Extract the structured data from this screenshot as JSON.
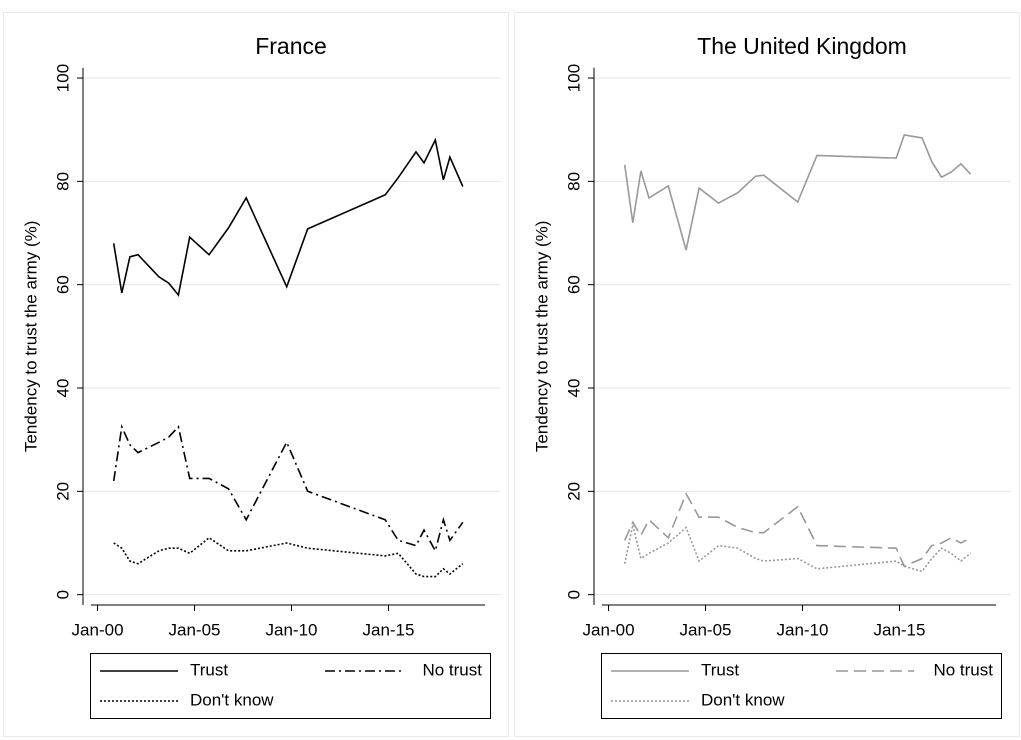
{
  "chart_data": [
    {
      "type": "line",
      "title": "France",
      "ylabel": "Tendency to trust the army (%)",
      "x": [
        "2000-11",
        "2001-04",
        "2001-09",
        "2002-02",
        "2003-03",
        "2003-09",
        "2004-03",
        "2004-10",
        "2005-10",
        "2006-10",
        "2007-09",
        "2009-10",
        "2010-11",
        "2014-11",
        "2015-07",
        "2016-06",
        "2016-11",
        "2017-06",
        "2017-11",
        "2018-03",
        "2018-11"
      ],
      "series": [
        {
          "name": "Trust",
          "color": "#000000",
          "dash": "solid",
          "values": [
            68,
            58.4,
            65.4,
            65.8,
            61.5,
            60.3,
            58,
            69.2,
            65.8,
            71,
            76.8,
            59.6,
            70.8,
            77.4,
            80.7,
            85.7,
            83.6,
            88,
            80.3,
            84.7,
            79
          ]
        },
        {
          "name": "No trust",
          "color": "#000000",
          "dash": "dashdot",
          "values": [
            22,
            32.5,
            29,
            27.5,
            29.5,
            30.5,
            32.5,
            22.5,
            22.5,
            20.5,
            14.5,
            29.5,
            20,
            14.5,
            10.5,
            9.5,
            12.5,
            8.5,
            14.5,
            10.5,
            14
          ]
        },
        {
          "name": "Don't know",
          "color": "#000000",
          "dash": "dotted",
          "values": [
            10,
            9,
            6.5,
            6,
            8.5,
            9,
            9,
            8,
            11,
            8.5,
            8.5,
            10,
            9,
            7.5,
            8,
            4,
            3.5,
            3.5,
            5,
            4,
            6
          ]
        }
      ],
      "xlim": [
        "1999-04",
        "2020-10"
      ],
      "xticks": [
        {
          "value": "2000-01",
          "label": "Jan-00"
        },
        {
          "value": "2005-01",
          "label": "Jan-05"
        },
        {
          "value": "2010-01",
          "label": "Jan-10"
        },
        {
          "value": "2015-01",
          "label": "Jan-15"
        }
      ],
      "ylim": [
        -2,
        102
      ],
      "yticks": [
        0,
        20,
        40,
        60,
        80,
        100
      ],
      "grid": true,
      "legend": "bottom"
    },
    {
      "type": "line",
      "title": "The United Kingdom",
      "ylabel": "Tendency to trust the army (%)",
      "x": [
        "2000-11",
        "2001-04",
        "2001-09",
        "2002-02",
        "2003-02",
        "2004-01",
        "2004-09",
        "2005-09",
        "2006-09",
        "2007-08",
        "2008-01",
        "2009-10",
        "2010-10",
        "2014-11",
        "2015-04",
        "2016-03",
        "2016-09",
        "2017-03",
        "2017-09",
        "2018-03",
        "2018-09"
      ],
      "series": [
        {
          "name": "Trust",
          "color": "#999999",
          "dash": "solid",
          "values": [
            83.2,
            72,
            82,
            76.8,
            79.1,
            66.7,
            78.7,
            75.8,
            77.8,
            81,
            81.2,
            76,
            85,
            84.5,
            89,
            88.4,
            83.8,
            80.8,
            81.8,
            83.4,
            81.4
          ]
        },
        {
          "name": "No trust",
          "color": "#999999",
          "dash": "dashed",
          "values": [
            10.5,
            14,
            11.5,
            14.5,
            11,
            19.5,
            15,
            15,
            13,
            12,
            12,
            17,
            9.5,
            9,
            5.5,
            7,
            9.5,
            10,
            11,
            10,
            11
          ]
        },
        {
          "name": "Don't know",
          "color": "#999999",
          "dash": "dotted",
          "values": [
            6,
            13.5,
            7,
            8,
            10,
            13,
            6.5,
            9.5,
            9,
            7,
            6.5,
            7,
            5,
            6.5,
            5.5,
            4.5,
            7,
            9,
            8,
            6.5,
            8
          ]
        }
      ],
      "xlim": [
        "1999-04",
        "2020-10"
      ],
      "xticks": [
        {
          "value": "2000-01",
          "label": "Jan-00"
        },
        {
          "value": "2005-01",
          "label": "Jan-05"
        },
        {
          "value": "2010-01",
          "label": "Jan-10"
        },
        {
          "value": "2015-01",
          "label": "Jan-15"
        }
      ],
      "ylim": [
        -2,
        102
      ],
      "yticks": [
        0,
        20,
        40,
        60,
        80,
        100
      ],
      "grid": true,
      "legend": "bottom"
    }
  ]
}
